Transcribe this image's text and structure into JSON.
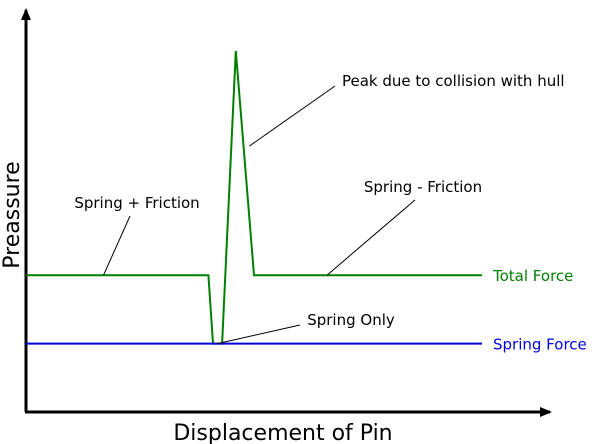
{
  "chart_data": {
    "type": "line",
    "title": "",
    "xlabel": "Displacement of Pin",
    "ylabel": "Preassure",
    "grid": false,
    "legend": "right, at line ends",
    "xlim": [
      0,
      100
    ],
    "ylim": [
      0,
      100
    ],
    "series": [
      {
        "name": "Total Force",
        "color": "#008000",
        "points": [
          [
            0,
            36
          ],
          [
            40,
            36
          ],
          [
            41,
            18
          ],
          [
            43,
            18
          ],
          [
            46,
            95
          ],
          [
            50,
            36
          ],
          [
            100,
            36
          ]
        ]
      },
      {
        "name": "Spring Force",
        "color": "#0000dd",
        "points": [
          [
            0,
            18
          ],
          [
            100,
            18
          ]
        ]
      }
    ],
    "annotations": [
      {
        "text": "Peak due to collision with hull",
        "anchor": "right",
        "target": [
          49,
          70
        ]
      },
      {
        "text": "Spring + Friction",
        "anchor": "above",
        "target": [
          17,
          36
        ]
      },
      {
        "text": "Spring - Friction",
        "anchor": "above",
        "target": [
          66,
          36
        ]
      },
      {
        "text": "Spring Only",
        "anchor": "above-right",
        "target": [
          42,
          18
        ]
      }
    ]
  }
}
